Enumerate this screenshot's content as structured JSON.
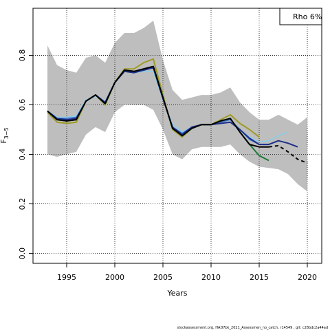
{
  "chart_data": {
    "type": "line",
    "xlabel": "Years",
    "ylabel": "F",
    "ylabel_subscript": "3−5",
    "xlim": [
      1991.5,
      2021.5
    ],
    "ylim": [
      -0.04,
      0.99
    ],
    "xticks": [
      1995,
      2000,
      2005,
      2010,
      2015,
      2020
    ],
    "yticks": [
      0.0,
      0.2,
      0.4,
      0.6,
      0.8
    ],
    "ytick_labels": [
      "0.0",
      "0.2",
      "0.4",
      "0.6",
      "0.8"
    ],
    "grid": true,
    "legend": {
      "position": "top-right",
      "text": "Rho 6%"
    },
    "footer": "stockassessment.org, HAD7bk_2021_Assessmen_no_catch, r14549 , git: c28bdc2a44ad",
    "confidence_band": {
      "x": [
        1993,
        1994,
        1995,
        1996,
        1997,
        1998,
        1999,
        2000,
        2001,
        2002,
        2003,
        2004,
        2005,
        2006,
        2007,
        2008,
        2009,
        2010,
        2011,
        2012,
        2013,
        2014,
        2015,
        2016,
        2017,
        2018,
        2019,
        2020
      ],
      "upper": [
        0.84,
        0.76,
        0.74,
        0.73,
        0.79,
        0.8,
        0.77,
        0.85,
        0.89,
        0.89,
        0.91,
        0.94,
        0.78,
        0.66,
        0.62,
        0.63,
        0.64,
        0.64,
        0.65,
        0.67,
        0.61,
        0.57,
        0.54,
        0.54,
        0.56,
        0.54,
        0.52,
        0.55
      ],
      "lower": [
        0.4,
        0.39,
        0.4,
        0.41,
        0.48,
        0.51,
        0.49,
        0.57,
        0.6,
        0.6,
        0.6,
        0.58,
        0.5,
        0.4,
        0.38,
        0.42,
        0.43,
        0.43,
        0.43,
        0.44,
        0.4,
        0.37,
        0.35,
        0.345,
        0.34,
        0.32,
        0.28,
        0.25
      ]
    },
    "series": [
      {
        "color": "#9e9b26",
        "width": 2,
        "x": [
          1993,
          1994,
          1995,
          1996,
          1997,
          1998,
          1999,
          2000,
          2001,
          2002,
          2003,
          2004,
          2005,
          2006,
          2007,
          2008,
          2009,
          2010,
          2011,
          2012,
          2013,
          2014,
          2015
        ],
        "y": [
          0.57,
          0.53,
          0.525,
          0.53,
          0.615,
          0.64,
          0.6,
          0.69,
          0.745,
          0.745,
          0.77,
          0.785,
          0.64,
          0.5,
          0.47,
          0.505,
          0.52,
          0.52,
          0.54,
          0.56,
          0.525,
          0.5,
          0.47
        ]
      },
      {
        "color": "#87ceeb",
        "width": 1.5,
        "x": [
          1993,
          1994,
          1995,
          1996,
          1997,
          1998,
          1999,
          2000,
          2001,
          2002,
          2003,
          2004,
          2005,
          2006,
          2007,
          2008,
          2009,
          2010,
          2011,
          2012,
          2013,
          2014,
          2015,
          2016,
          2017,
          2018
        ],
        "y": [
          0.575,
          0.55,
          0.55,
          0.555,
          0.62,
          0.635,
          0.615,
          0.69,
          0.735,
          0.73,
          0.735,
          0.735,
          0.62,
          0.52,
          0.49,
          0.51,
          0.52,
          0.52,
          0.53,
          0.54,
          0.5,
          0.47,
          0.45,
          0.455,
          0.475,
          0.49
        ]
      },
      {
        "color": "#3b6fcf",
        "width": 1.5,
        "x": [
          1993,
          1994,
          1995,
          1996,
          1997,
          1998,
          1999,
          2000,
          2001,
          2002,
          2003,
          2004,
          2005,
          2006,
          2007,
          2008,
          2009,
          2010,
          2011,
          2012,
          2013,
          2014,
          2015
        ],
        "y": [
          0.575,
          0.545,
          0.545,
          0.55,
          0.615,
          0.64,
          0.61,
          0.69,
          0.735,
          0.73,
          0.74,
          0.75,
          0.625,
          0.51,
          0.485,
          0.51,
          0.52,
          0.52,
          0.53,
          0.54,
          0.5,
          0.46,
          0.44
        ]
      },
      {
        "color": "#1c7a3a",
        "width": 2,
        "x": [
          1993,
          1994,
          1995,
          1996,
          1997,
          1998,
          1999,
          2000,
          2001,
          2002,
          2003,
          2004,
          2005,
          2006,
          2007,
          2008,
          2009,
          2010,
          2011,
          2012,
          2013,
          2014,
          2015,
          2016
        ],
        "y": [
          0.575,
          0.54,
          0.535,
          0.54,
          0.615,
          0.64,
          0.605,
          0.69,
          0.74,
          0.735,
          0.745,
          0.755,
          0.63,
          0.505,
          0.475,
          0.505,
          0.52,
          0.52,
          0.535,
          0.545,
          0.49,
          0.44,
          0.395,
          0.375
        ]
      },
      {
        "color": "#1e2f87",
        "width": 2,
        "x": [
          1993,
          1994,
          1995,
          1996,
          1997,
          1998,
          1999,
          2000,
          2001,
          2002,
          2003,
          2004,
          2005,
          2006,
          2007,
          2008,
          2009,
          2010,
          2011,
          2012,
          2013,
          2014,
          2015,
          2016,
          2017,
          2018,
          2019
        ],
        "y": [
          0.575,
          0.545,
          0.54,
          0.545,
          0.615,
          0.64,
          0.61,
          0.69,
          0.735,
          0.73,
          0.74,
          0.75,
          0.625,
          0.51,
          0.48,
          0.51,
          0.52,
          0.52,
          0.525,
          0.53,
          0.5,
          0.465,
          0.44,
          0.44,
          0.455,
          0.445,
          0.43
        ]
      },
      {
        "color": "#000000",
        "width": 2,
        "x": [
          1993,
          1994,
          1995,
          1996,
          1997,
          1998,
          1999,
          2000,
          2001,
          2002,
          2003,
          2004,
          2005,
          2006,
          2007,
          2008,
          2009,
          2010,
          2011,
          2012,
          2013,
          2014,
          2015,
          2016
        ],
        "y": [
          0.575,
          0.54,
          0.535,
          0.54,
          0.615,
          0.64,
          0.605,
          0.69,
          0.74,
          0.735,
          0.745,
          0.755,
          0.63,
          0.505,
          0.475,
          0.505,
          0.52,
          0.52,
          0.535,
          0.545,
          0.49,
          0.44,
          0.43,
          0.43
        ]
      },
      {
        "color": "#000000",
        "width": 2,
        "dashed": true,
        "x": [
          2016,
          2017,
          2018,
          2019,
          2020
        ],
        "y": [
          0.43,
          0.435,
          0.41,
          0.38,
          0.365
        ]
      }
    ]
  }
}
